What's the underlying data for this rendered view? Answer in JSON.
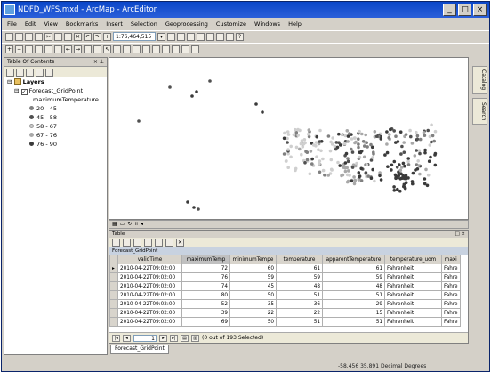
{
  "window": {
    "title": "NDFD_WFS.mxd - ArcMap - ArcEditor",
    "buttons": [
      "_",
      "□",
      "×"
    ]
  },
  "menu": [
    "File",
    "Edit",
    "View",
    "Bookmarks",
    "Insert",
    "Selection",
    "Geoprocessing",
    "Customize",
    "Windows",
    "Help"
  ],
  "toolbar": {
    "scale": "1:76,464,515"
  },
  "toc": {
    "title": "Table Of Contents",
    "root": "Layers",
    "layer": "Forecast_GridPoint",
    "field": "maximumTemperature",
    "classes": [
      {
        "label": "20 - 45",
        "color": "#808080"
      },
      {
        "label": "45 - 58",
        "color": "#505050"
      },
      {
        "label": "58 - 67",
        "color": "#cfcfcf"
      },
      {
        "label": "67 - 76",
        "color": "#a8a8a8"
      },
      {
        "label": "76 - 90",
        "color": "#3a3a3a"
      }
    ]
  },
  "side_tabs": [
    "Catalog",
    "Search"
  ],
  "table": {
    "panel_title": "Table",
    "name": "Forecast_GridPoint",
    "columns": [
      "validTime",
      "maximumTemp",
      "minimumTempe",
      "temperature",
      "apparentTemperature",
      "temperature_uom",
      "maxi"
    ],
    "rows": [
      [
        "2010-04-22T09:02:00",
        "72",
        "60",
        "61",
        "61",
        "Fahrenheit",
        "Fahre"
      ],
      [
        "2010-04-22T09:02:00",
        "76",
        "59",
        "59",
        "59",
        "Fahrenheit",
        "Fahre"
      ],
      [
        "2010-04-22T09:02:00",
        "74",
        "45",
        "48",
        "48",
        "Fahrenheit",
        "Fahre"
      ],
      [
        "2010-04-22T09:02:00",
        "80",
        "50",
        "51",
        "51",
        "Fahrenheit",
        "Fahre"
      ],
      [
        "2010-04-22T09:02:00",
        "52",
        "35",
        "36",
        "29",
        "Fahrenheit",
        "Fahre"
      ],
      [
        "2010-04-22T09:02:00",
        "39",
        "22",
        "22",
        "15",
        "Fahrenheit",
        "Fahre"
      ],
      [
        "2010-04-22T09:02:00",
        "69",
        "50",
        "51",
        "51",
        "Fahrenheit",
        "Fahre"
      ]
    ],
    "record": "1",
    "selection_status": "(0 out of 193 Selected)"
  },
  "tab": "Forecast_GridPoint",
  "status": {
    "coordinates": "-58.456  35.891 Decimal Degrees"
  }
}
